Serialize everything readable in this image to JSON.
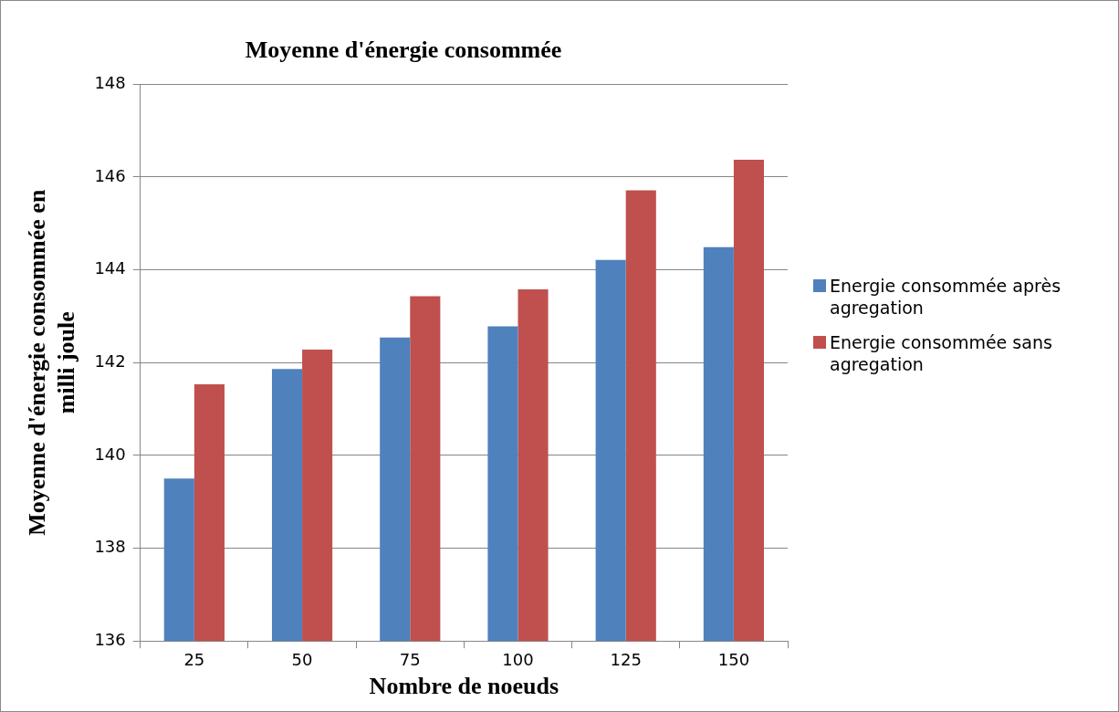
{
  "chart_data": {
    "type": "bar",
    "title": "Moyenne d'énergie consommée",
    "xlabel": "Nombre de noeuds",
    "ylabel": "Moyenne d'énergie consommée en milli joule",
    "categories": [
      "25",
      "50",
      "75",
      "100",
      "125",
      "150"
    ],
    "series": [
      {
        "name": "Energie consommée après agregation",
        "color": "#4f81bd",
        "values": [
          139.5,
          141.86,
          142.54,
          142.78,
          144.21,
          144.49
        ]
      },
      {
        "name": "Energie consommée sans agregation",
        "color": "#c0504d",
        "values": [
          141.53,
          142.28,
          143.43,
          143.58,
          145.71,
          146.37
        ]
      }
    ],
    "ylim": [
      136,
      148
    ],
    "yticks": [
      136,
      138,
      140,
      142,
      144,
      146,
      148
    ],
    "grid": "y",
    "legend": "right"
  }
}
